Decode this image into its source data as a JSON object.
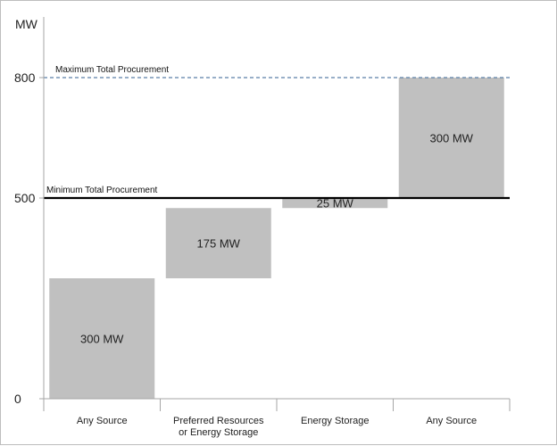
{
  "chart_data": {
    "type": "bar",
    "subtype": "waterfall",
    "ylabel": "MW",
    "ylim": [
      0,
      800
    ],
    "yticks": [
      0,
      500,
      800
    ],
    "grid": false,
    "legend": "none",
    "categories": [
      [
        "Any Source"
      ],
      [
        "Preferred Resources",
        "or Energy Storage"
      ],
      [
        "Energy Storage"
      ],
      [
        "Any Source"
      ]
    ],
    "bars": [
      {
        "base": 0,
        "value": 300,
        "label": "300 MW"
      },
      {
        "base": 300,
        "value": 175,
        "label": "175 MW"
      },
      {
        "base": 475,
        "value": 25,
        "label": "25 MW"
      },
      {
        "base": 500,
        "value": 300,
        "label": "300 MW"
      }
    ],
    "reference_lines": [
      {
        "value": 500,
        "label": "Minimum Total Procurement",
        "style": "solid",
        "color": "#000000"
      },
      {
        "value": 800,
        "label": "Maximum Total Procurement",
        "style": "dashed",
        "color": "#5b7fa6"
      }
    ],
    "bar_color": "#c0c0c0",
    "axis_color": "#a6a6a6"
  }
}
